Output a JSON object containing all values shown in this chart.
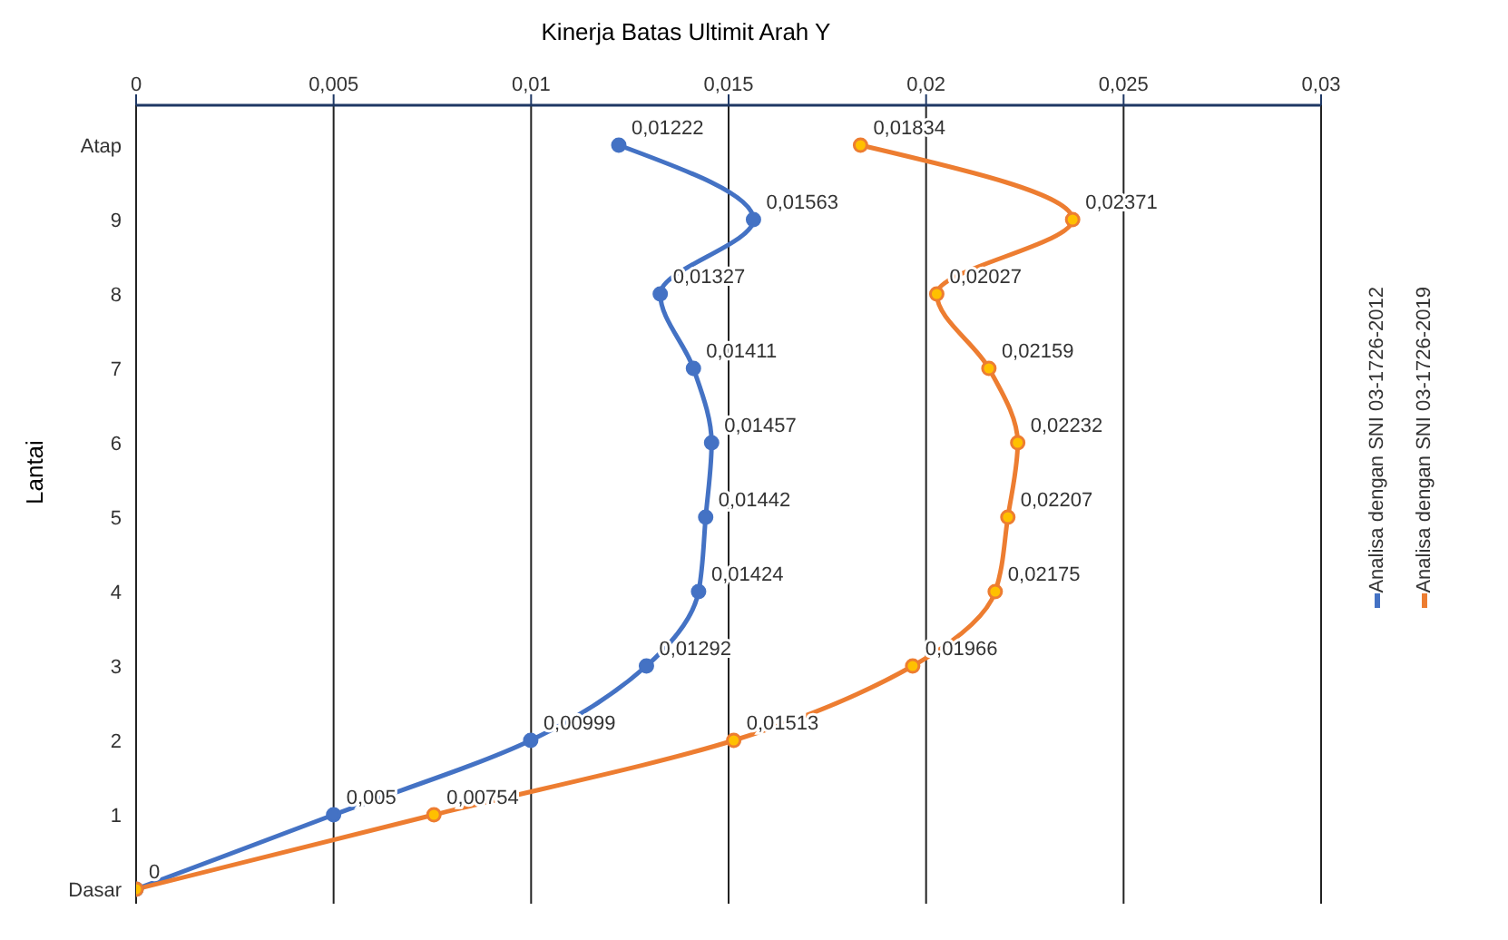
{
  "chart_data": {
    "type": "line",
    "title": "Kinerja Batas Ultimit Arah Y",
    "ylabel": "Lantai",
    "orientation": "horizontal",
    "categories": [
      "Atap",
      "9",
      "8",
      "7",
      "6",
      "5",
      "4",
      "3",
      "2",
      "1",
      "Dasar"
    ],
    "series": [
      {
        "name": "Analisa dengan SNI 03-1726-2012",
        "color": "#4472c4",
        "values": [
          0.01222,
          0.01563,
          0.01327,
          0.01411,
          0.01457,
          0.01442,
          0.01424,
          0.01292,
          0.00999,
          0.005,
          0
        ],
        "value_labels": [
          "0,01222",
          "0,01563",
          "0,01327",
          "0,01411",
          "0,01457",
          "0,01442",
          "0,01424",
          "0,01292",
          "0,00999",
          "0,005",
          "0"
        ]
      },
      {
        "name": "Analisa dengan SNI 03-1726-2019",
        "color": "#ed7d31",
        "values": [
          0.01834,
          0.02371,
          0.02027,
          0.02159,
          0.02232,
          0.02207,
          0.02175,
          0.01966,
          0.01513,
          0.00754,
          0
        ],
        "value_labels": [
          "0,01834",
          "0,02371",
          "0,02027",
          "0,02159",
          "0,02232",
          "0,02207",
          "0,02175",
          "0,01966",
          "0,01513",
          "0,00754",
          null
        ]
      }
    ],
    "xlim": [
      0,
      0.03
    ],
    "xticks": [
      0,
      {
        "value": 0.005,
        "label": "0,005"
      },
      {
        "value": 0.01,
        "label": "0,01"
      },
      {
        "value": 0.015,
        "label": "0,015"
      },
      {
        "value": 0.02,
        "label": "0,02"
      },
      {
        "value": 0.025,
        "label": "0,025"
      },
      {
        "value": 0.03,
        "label": "0,03"
      }
    ],
    "grid": "x",
    "legend": "right",
    "marker": "circle",
    "line_style": "solid"
  }
}
